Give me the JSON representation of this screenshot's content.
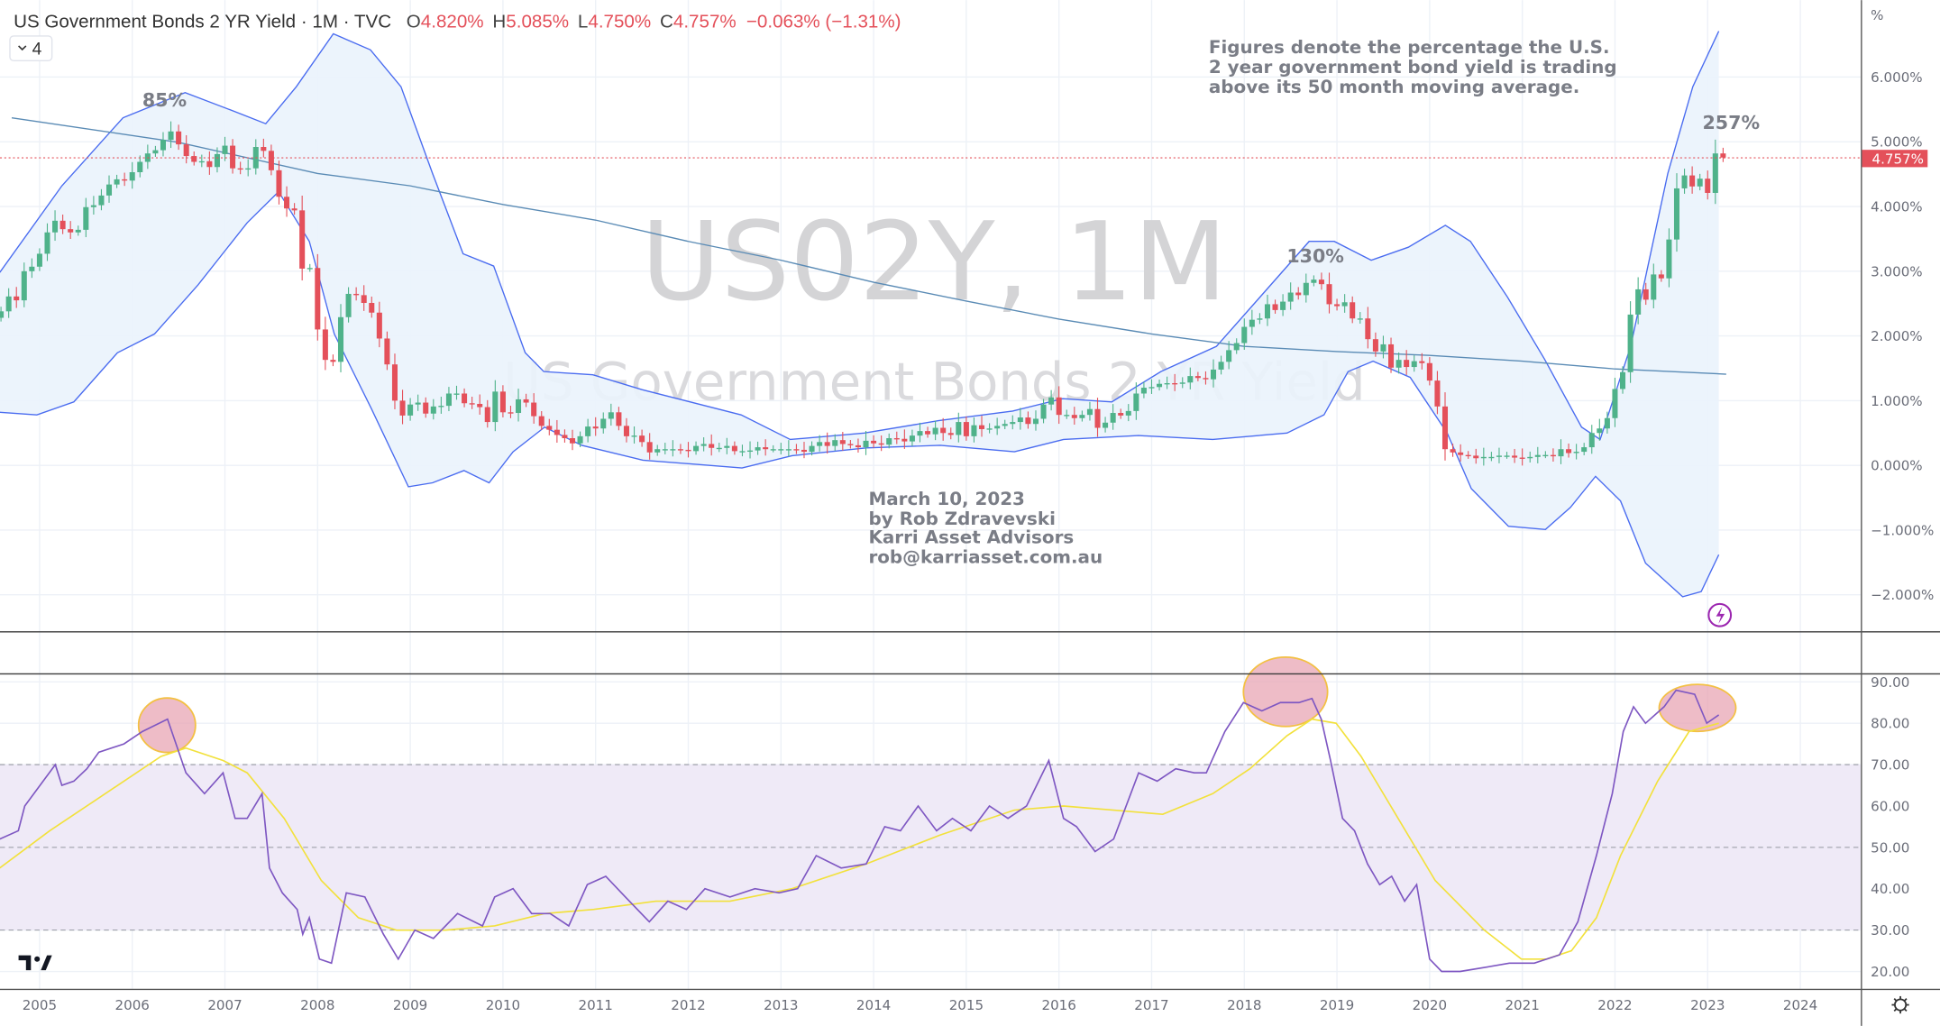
{
  "header": {
    "title": "US Government Bonds 2 YR Yield · 1M · TVC",
    "o_label": "O",
    "o_value": "4.820%",
    "h_label": "H",
    "h_value": "5.085%",
    "l_label": "L",
    "l_value": "4.750%",
    "c_label": "C",
    "c_value": "4.757%",
    "change": "−0.063% (−1.31%)",
    "indicator_count": "4"
  },
  "watermark": {
    "symbol": "US02Y, 1M",
    "name": "US Government Bonds 2 YR Yield"
  },
  "annotations": {
    "note_lines": [
      "Figures denote the percentage the U.S.",
      "2 year government bond yield is trading",
      "above its 50 month moving average."
    ],
    "credit_lines": [
      "March 10, 2023",
      "by Rob Zdravevski",
      "Karri Asset Advisors",
      "rob@karriasset.com.au"
    ],
    "peak_labels": [
      {
        "text": "85%",
        "year": 2006.38,
        "price": 5.62
      },
      {
        "text": "130%",
        "year": 2018.42,
        "price": 3.2
      },
      {
        "text": "257%",
        "year": 2022.94,
        "price": 5.25
      }
    ]
  },
  "colors": {
    "up": "#4fb28a",
    "down": "#e4505a",
    "band": "#4a6cf0",
    "band_fill": "#eaf3fc",
    "ma": "#5a8bb5",
    "rsi": "#7e57c2",
    "rsi_ma": "#f2e13c",
    "rsi_band": "#efeaf7",
    "highlight": "#e8a5b4"
  },
  "chart_data": [
    {
      "type": "candlestick",
      "title": "US Government Bonds 2 YR Yield",
      "start": "2004-08",
      "interval": "1M",
      "closes": [
        2.38,
        2.61,
        2.55,
        3.0,
        3.07,
        3.27,
        3.6,
        3.78,
        3.65,
        3.6,
        3.64,
        3.99,
        4.02,
        4.17,
        4.34,
        4.42,
        4.4,
        4.53,
        4.69,
        4.82,
        4.87,
        5.03,
        5.16,
        4.96,
        4.78,
        4.69,
        4.7,
        4.61,
        4.81,
        4.94,
        4.59,
        4.58,
        4.59,
        4.92,
        4.86,
        4.56,
        4.15,
        3.97,
        3.94,
        3.04,
        3.05,
        2.1,
        1.63,
        1.6,
        2.29,
        2.65,
        2.63,
        2.51,
        2.36,
        1.96,
        1.56,
        1.0,
        0.77,
        0.94,
        0.97,
        0.8,
        0.91,
        0.92,
        1.11,
        1.11,
        0.96,
        0.95,
        0.9,
        0.67,
        1.14,
        0.82,
        0.81,
        1.02,
        0.97,
        0.76,
        0.61,
        0.55,
        0.47,
        0.42,
        0.34,
        0.45,
        0.6,
        0.57,
        0.72,
        0.82,
        0.61,
        0.45,
        0.46,
        0.36,
        0.2,
        0.25,
        0.25,
        0.25,
        0.24,
        0.22,
        0.3,
        0.33,
        0.27,
        0.27,
        0.3,
        0.22,
        0.22,
        0.23,
        0.28,
        0.25,
        0.25,
        0.25,
        0.25,
        0.24,
        0.21,
        0.3,
        0.36,
        0.3,
        0.39,
        0.33,
        0.31,
        0.28,
        0.38,
        0.34,
        0.32,
        0.42,
        0.41,
        0.37,
        0.46,
        0.53,
        0.48,
        0.58,
        0.5,
        0.47,
        0.67,
        0.45,
        0.62,
        0.56,
        0.57,
        0.61,
        0.64,
        0.67,
        0.74,
        0.64,
        0.72,
        0.94,
        1.05,
        0.78,
        0.78,
        0.73,
        0.78,
        0.87,
        0.58,
        0.66,
        0.81,
        0.77,
        0.84,
        1.11,
        1.2,
        1.21,
        1.26,
        1.27,
        1.26,
        1.28,
        1.38,
        1.35,
        1.33,
        1.48,
        1.6,
        1.78,
        1.89,
        2.14,
        2.25,
        2.27,
        2.49,
        2.4,
        2.53,
        2.67,
        2.63,
        2.82,
        2.87,
        2.8,
        2.49,
        2.46,
        2.52,
        2.27,
        2.27,
        1.95,
        1.76,
        1.87,
        1.51,
        1.63,
        1.52,
        1.61,
        1.58,
        1.31,
        0.91,
        0.25,
        0.2,
        0.16,
        0.15,
        0.11,
        0.13,
        0.13,
        0.15,
        0.15,
        0.12,
        0.11,
        0.13,
        0.16,
        0.16,
        0.14,
        0.25,
        0.19,
        0.21,
        0.28,
        0.5,
        0.57,
        0.73,
        1.18,
        1.44,
        2.33,
        2.72,
        2.56,
        2.95,
        2.89,
        3.49,
        4.28,
        4.48,
        4.31,
        4.43,
        4.21,
        4.82,
        4.757
      ],
      "last_price_label": "4.757%",
      "ma50": [
        [
          2004.7,
          5.37
        ],
        [
          2006.5,
          4.99
        ],
        [
          2008,
          4.51
        ],
        [
          2009,
          4.32
        ],
        [
          2010,
          4.03
        ],
        [
          2011,
          3.79
        ],
        [
          2012,
          3.46
        ],
        [
          2013,
          3.17
        ],
        [
          2014,
          2.83
        ],
        [
          2015,
          2.54
        ],
        [
          2016,
          2.26
        ],
        [
          2017,
          2.03
        ],
        [
          2018,
          1.84
        ],
        [
          2019,
          1.76
        ],
        [
          2020,
          1.7
        ],
        [
          2021,
          1.61
        ],
        [
          2022,
          1.49
        ],
        [
          2023.2,
          1.41
        ]
      ],
      "bb_upper": [
        [
          2004.57,
          2.98
        ],
        [
          2005.24,
          4.32
        ],
        [
          2005.9,
          5.37
        ],
        [
          2006.57,
          5.76
        ],
        [
          2007.1,
          5.47
        ],
        [
          2007.44,
          5.28
        ],
        [
          2007.77,
          5.85
        ],
        [
          2008.17,
          6.67
        ],
        [
          2008.57,
          6.42
        ],
        [
          2008.9,
          5.85
        ],
        [
          2009.24,
          4.51
        ],
        [
          2009.57,
          3.27
        ],
        [
          2009.9,
          3.08
        ],
        [
          2010.24,
          1.74
        ],
        [
          2010.44,
          1.45
        ],
        [
          2010.97,
          1.4
        ],
        [
          2011.5,
          1.17
        ],
        [
          2012.57,
          0.78
        ],
        [
          2013.1,
          0.4
        ],
        [
          2013.9,
          0.5
        ],
        [
          2014.7,
          0.69
        ],
        [
          2015.5,
          0.84
        ],
        [
          2016.04,
          1.03
        ],
        [
          2016.57,
          0.98
        ],
        [
          2017.1,
          1.45
        ],
        [
          2017.7,
          1.84
        ],
        [
          2018.17,
          2.6
        ],
        [
          2018.7,
          3.46
        ],
        [
          2018.97,
          3.46
        ],
        [
          2019.37,
          3.17
        ],
        [
          2019.77,
          3.37
        ],
        [
          2020.17,
          3.71
        ],
        [
          2020.44,
          3.46
        ],
        [
          2020.84,
          2.6
        ],
        [
          2021.24,
          1.64
        ],
        [
          2021.64,
          0.59
        ],
        [
          2021.84,
          0.4
        ],
        [
          2022.17,
          1.84
        ],
        [
          2022.57,
          4.51
        ],
        [
          2022.84,
          5.85
        ],
        [
          2023.12,
          6.71
        ]
      ],
      "bb_lower": [
        [
          2004.57,
          0.82
        ],
        [
          2004.97,
          0.78
        ],
        [
          2005.37,
          0.98
        ],
        [
          2005.84,
          1.74
        ],
        [
          2006.24,
          2.03
        ],
        [
          2006.71,
          2.79
        ],
        [
          2007.24,
          3.75
        ],
        [
          2007.58,
          4.23
        ],
        [
          2007.91,
          3.46
        ],
        [
          2008.18,
          2.03
        ],
        [
          2008.58,
          0.88
        ],
        [
          2008.98,
          -0.33
        ],
        [
          2009.24,
          -0.27
        ],
        [
          2009.58,
          -0.08
        ],
        [
          2009.85,
          -0.27
        ],
        [
          2010.11,
          0.21
        ],
        [
          2010.45,
          0.59
        ],
        [
          2010.85,
          0.31
        ],
        [
          2011.51,
          0.08
        ],
        [
          2012.58,
          -0.04
        ],
        [
          2013.12,
          0.15
        ],
        [
          2013.92,
          0.27
        ],
        [
          2014.72,
          0.31
        ],
        [
          2015.52,
          0.21
        ],
        [
          2016.05,
          0.4
        ],
        [
          2016.86,
          0.46
        ],
        [
          2017.66,
          0.4
        ],
        [
          2018.46,
          0.5
        ],
        [
          2018.86,
          0.78
        ],
        [
          2019.12,
          1.45
        ],
        [
          2019.39,
          1.61
        ],
        [
          2019.79,
          1.36
        ],
        [
          2020.19,
          0.5
        ],
        [
          2020.45,
          -0.36
        ],
        [
          2020.85,
          -0.94
        ],
        [
          2021.25,
          -0.99
        ],
        [
          2021.52,
          -0.65
        ],
        [
          2021.79,
          -0.17
        ],
        [
          2022.06,
          -0.55
        ],
        [
          2022.33,
          -1.51
        ],
        [
          2022.73,
          -2.03
        ],
        [
          2022.93,
          -1.95
        ],
        [
          2023.12,
          -1.38
        ]
      ],
      "y_ticks": [
        "6.000%",
        "5.000%",
        "4.000%",
        "3.000%",
        "2.000%",
        "1.000%",
        "0.000%",
        "−1.000%",
        "−2.000%"
      ],
      "y_tick_values": [
        6,
        5,
        4,
        3,
        2,
        1,
        0,
        -1,
        -2
      ],
      "y_unit": "%",
      "ylim": [
        -2.5,
        7.2
      ]
    },
    {
      "type": "line",
      "title": "RSI",
      "rsi": [
        [
          2004.57,
          52
        ],
        [
          2004.77,
          54
        ],
        [
          2004.84,
          60
        ],
        [
          2005.17,
          70
        ],
        [
          2005.24,
          65
        ],
        [
          2005.37,
          66
        ],
        [
          2005.51,
          69
        ],
        [
          2005.64,
          73
        ],
        [
          2005.91,
          75
        ],
        [
          2006.11,
          78
        ],
        [
          2006.38,
          81
        ],
        [
          2006.58,
          68
        ],
        [
          2006.78,
          63
        ],
        [
          2006.98,
          68
        ],
        [
          2007.11,
          57
        ],
        [
          2007.24,
          57
        ],
        [
          2007.4,
          63
        ],
        [
          2007.48,
          45
        ],
        [
          2007.62,
          39
        ],
        [
          2007.78,
          35
        ],
        [
          2007.84,
          29
        ],
        [
          2007.91,
          33
        ],
        [
          2008.02,
          23
        ],
        [
          2008.15,
          22
        ],
        [
          2008.31,
          39
        ],
        [
          2008.51,
          38
        ],
        [
          2008.71,
          29
        ],
        [
          2008.87,
          23
        ],
        [
          2009.05,
          30
        ],
        [
          2009.25,
          28
        ],
        [
          2009.51,
          34
        ],
        [
          2009.78,
          31
        ],
        [
          2009.91,
          38
        ],
        [
          2010.11,
          40
        ],
        [
          2010.31,
          34
        ],
        [
          2010.51,
          34
        ],
        [
          2010.71,
          31
        ],
        [
          2010.91,
          41
        ],
        [
          2011.11,
          43
        ],
        [
          2011.32,
          38
        ],
        [
          2011.58,
          32
        ],
        [
          2011.78,
          37
        ],
        [
          2011.98,
          35
        ],
        [
          2012.18,
          40
        ],
        [
          2012.45,
          38
        ],
        [
          2012.72,
          40
        ],
        [
          2012.98,
          39
        ],
        [
          2013.18,
          40
        ],
        [
          2013.38,
          48
        ],
        [
          2013.65,
          45
        ],
        [
          2013.92,
          46
        ],
        [
          2014.12,
          55
        ],
        [
          2014.29,
          54
        ],
        [
          2014.48,
          60
        ],
        [
          2014.68,
          54
        ],
        [
          2014.85,
          57
        ],
        [
          2015.05,
          54
        ],
        [
          2015.25,
          60
        ],
        [
          2015.45,
          57
        ],
        [
          2015.65,
          60
        ],
        [
          2015.89,
          71
        ],
        [
          2016.05,
          57
        ],
        [
          2016.19,
          55
        ],
        [
          2016.39,
          49
        ],
        [
          2016.59,
          52
        ],
        [
          2016.86,
          68
        ],
        [
          2017.06,
          66
        ],
        [
          2017.26,
          69
        ],
        [
          2017.46,
          68
        ],
        [
          2017.59,
          68
        ],
        [
          2017.79,
          78
        ],
        [
          2017.99,
          85
        ],
        [
          2018.19,
          83
        ],
        [
          2018.39,
          85
        ],
        [
          2018.59,
          85
        ],
        [
          2018.73,
          86
        ],
        [
          2018.83,
          81
        ],
        [
          2018.93,
          71
        ],
        [
          2019.06,
          57
        ],
        [
          2019.19,
          54
        ],
        [
          2019.33,
          46
        ],
        [
          2019.46,
          41
        ],
        [
          2019.59,
          43
        ],
        [
          2019.73,
          37
        ],
        [
          2019.86,
          41
        ],
        [
          2020.0,
          23
        ],
        [
          2020.13,
          20
        ],
        [
          2020.33,
          20
        ],
        [
          2020.6,
          21
        ],
        [
          2020.86,
          22
        ],
        [
          2021.13,
          22
        ],
        [
          2021.4,
          24
        ],
        [
          2021.6,
          32
        ],
        [
          2021.8,
          48
        ],
        [
          2021.97,
          63
        ],
        [
          2022.09,
          78
        ],
        [
          2022.2,
          84
        ],
        [
          2022.33,
          80
        ],
        [
          2022.53,
          84
        ],
        [
          2022.66,
          88
        ],
        [
          2022.86,
          87
        ],
        [
          2022.99,
          80
        ],
        [
          2023.12,
          82
        ]
      ],
      "rsi_ma": [
        [
          2004.57,
          45
        ],
        [
          2005.11,
          54
        ],
        [
          2005.51,
          60
        ],
        [
          2005.91,
          66
        ],
        [
          2006.31,
          72
        ],
        [
          2006.58,
          74
        ],
        [
          2006.98,
          71
        ],
        [
          2007.24,
          68
        ],
        [
          2007.64,
          57
        ],
        [
          2008.04,
          42
        ],
        [
          2008.44,
          33
        ],
        [
          2008.85,
          30
        ],
        [
          2009.38,
          30
        ],
        [
          2009.91,
          31
        ],
        [
          2010.45,
          34
        ],
        [
          2010.98,
          35
        ],
        [
          2011.65,
          37
        ],
        [
          2012.45,
          37
        ],
        [
          2013.12,
          40
        ],
        [
          2013.92,
          46
        ],
        [
          2014.72,
          53
        ],
        [
          2015.52,
          59
        ],
        [
          2016.05,
          60
        ],
        [
          2016.59,
          59
        ],
        [
          2017.12,
          58
        ],
        [
          2017.66,
          63
        ],
        [
          2018.06,
          69
        ],
        [
          2018.46,
          77
        ],
        [
          2018.73,
          81
        ],
        [
          2018.99,
          80
        ],
        [
          2019.26,
          72
        ],
        [
          2019.66,
          57
        ],
        [
          2020.06,
          42
        ],
        [
          2020.59,
          30
        ],
        [
          2020.99,
          23
        ],
        [
          2021.26,
          23
        ],
        [
          2021.53,
          25
        ],
        [
          2021.8,
          33
        ],
        [
          2022.06,
          48
        ],
        [
          2022.46,
          66
        ],
        [
          2022.8,
          78
        ],
        [
          2023.12,
          80
        ]
      ],
      "y_ticks": [
        "90.00",
        "80.00",
        "70.00",
        "60.00",
        "50.00",
        "40.00",
        "30.00",
        "20.00"
      ],
      "y_tick_values": [
        90,
        80,
        70,
        60,
        50,
        40,
        30,
        20
      ],
      "bands": [
        70,
        50,
        30
      ]
    }
  ],
  "x_axis": {
    "ticks": [
      "2005",
      "2006",
      "2007",
      "2008",
      "2009",
      "2010",
      "2011",
      "2012",
      "2013",
      "2014",
      "2015",
      "2016",
      "2017",
      "2018",
      "2019",
      "2020",
      "2021",
      "2022",
      "2023",
      "2024"
    ]
  }
}
